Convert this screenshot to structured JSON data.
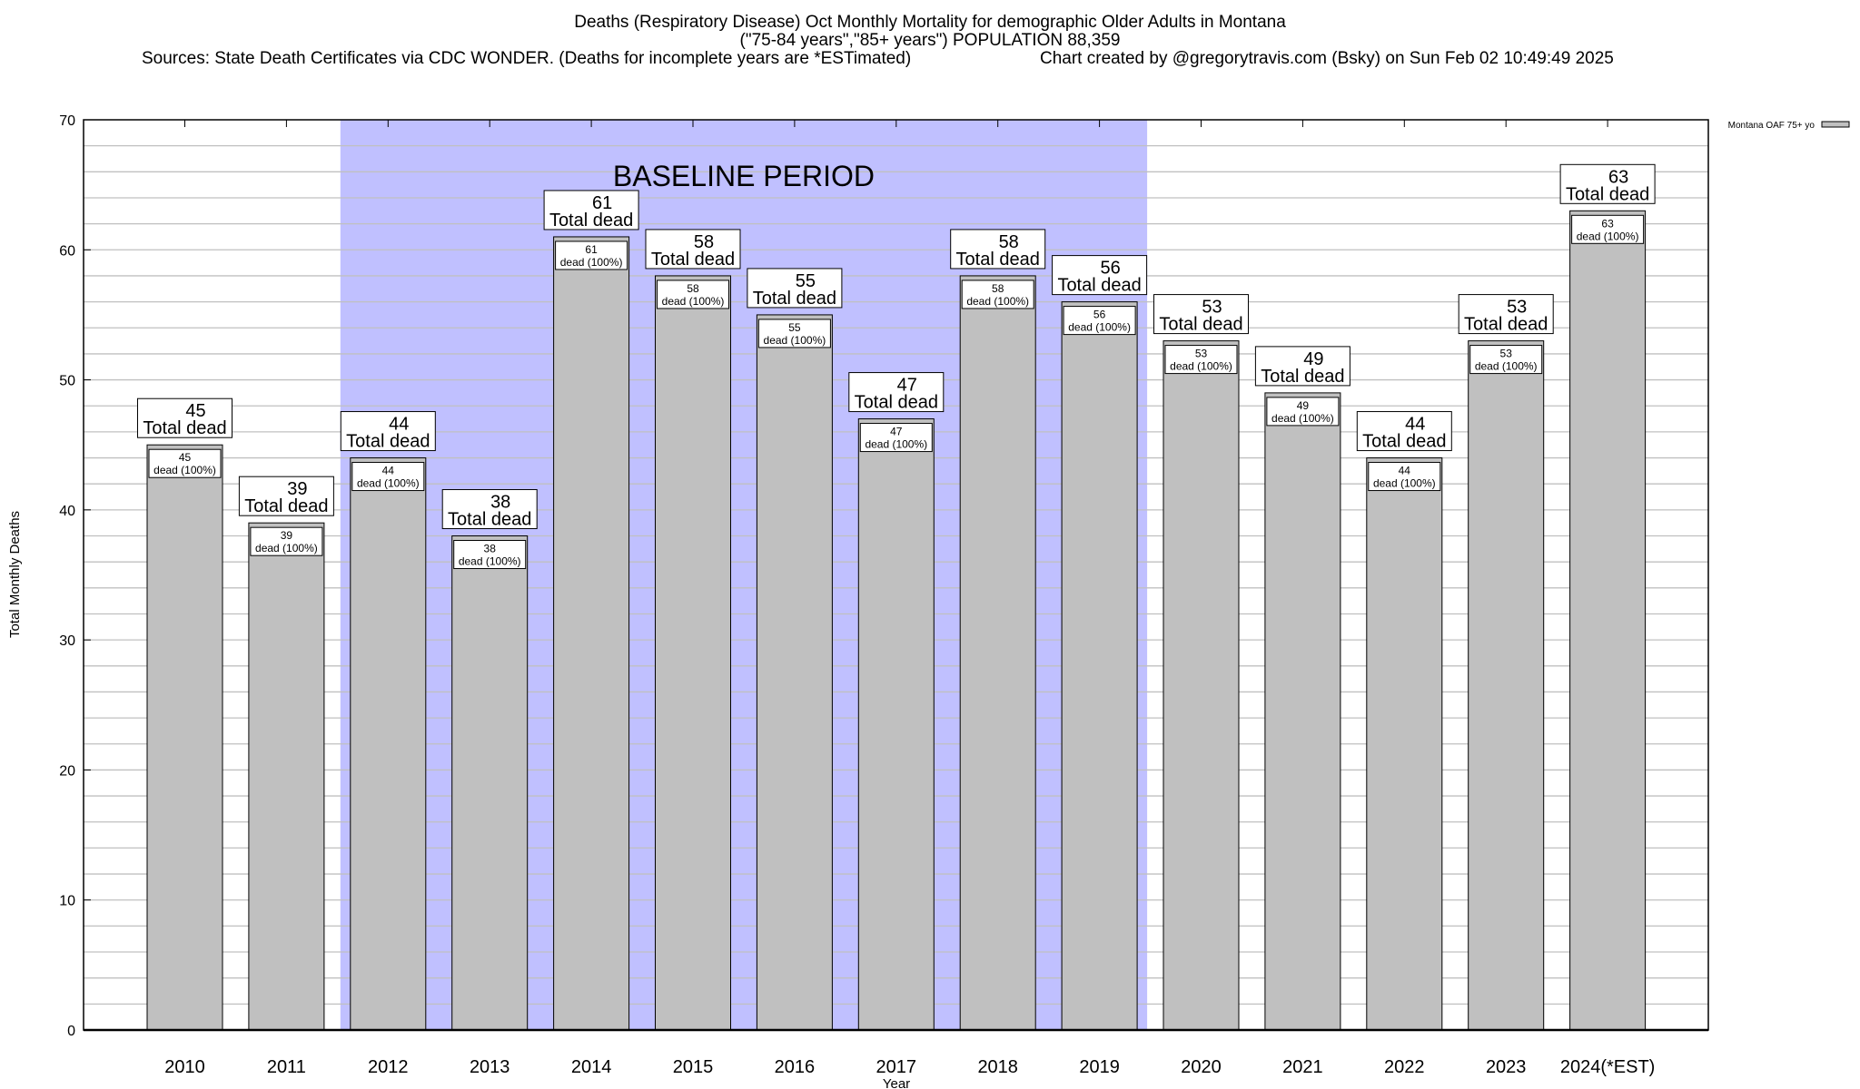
{
  "chart_data": {
    "type": "bar",
    "title": "Deaths (Respiratory Disease) Oct Monthly Mortality for demographic Older Adults in Montana",
    "subtitle": "(\"75-84 years\",\"85+ years\") POPULATION 88,359",
    "sources": "Sources: State Death Certificates via CDC WONDER. (Deaths for incomplete years are *ESTimated)",
    "credit": "Chart created by @gregorytravis.com (Bsky) on Sun Feb 02 10:49:49 2025",
    "xlabel": "Year",
    "ylabel": "Total Monthly Deaths",
    "ylim": [
      0,
      70
    ],
    "yticks": [
      0,
      10,
      20,
      30,
      40,
      50,
      60,
      70
    ],
    "grid": true,
    "legend": {
      "label": "Montana OAF 75+ yo",
      "placement": "top-right-outside"
    },
    "annotation": {
      "text": "BASELINE PERIOD",
      "from": "2012",
      "to": "2019",
      "color": "#c0c0ff"
    },
    "bar_color": "#c0c0c0",
    "top_label_suffix": "Total dead",
    "inner_label_suffix": "dead (100%)",
    "categories": [
      "2010",
      "2011",
      "2012",
      "2013",
      "2014",
      "2015",
      "2016",
      "2017",
      "2018",
      "2019",
      "2020",
      "2021",
      "2022",
      "2023",
      "2024(*EST)"
    ],
    "values": [
      45,
      39,
      44,
      38,
      61,
      58,
      55,
      47,
      58,
      56,
      53,
      49,
      44,
      53,
      63
    ]
  }
}
